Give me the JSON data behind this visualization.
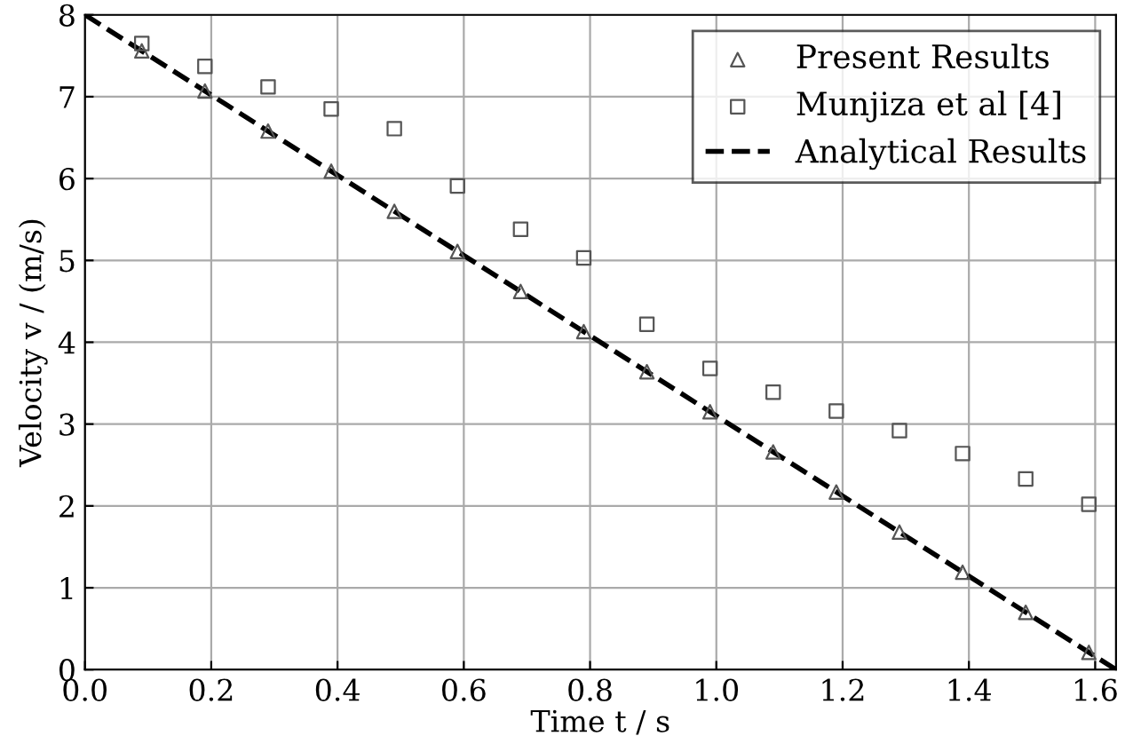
{
  "chart_data": {
    "type": "scatter",
    "xlabel": "Time t / s",
    "ylabel": "Velocity v / (m/s)",
    "x": [
      0.09,
      0.19,
      0.29,
      0.39,
      0.49,
      0.59,
      0.69,
      0.79,
      0.89,
      0.99,
      1.09,
      1.19,
      1.29,
      1.39,
      1.49,
      1.59
    ],
    "series": [
      {
        "name": "Present Results",
        "color": "#555555",
        "marker": "triangle",
        "values": [
          7.56,
          7.07,
          6.58,
          6.09,
          5.6,
          5.11,
          4.62,
          4.13,
          3.64,
          3.15,
          2.66,
          2.17,
          1.68,
          1.19,
          0.7,
          0.21
        ]
      },
      {
        "name": "Munjiza et al [4]",
        "color": "#555555",
        "marker": "square",
        "values": [
          7.65,
          7.37,
          7.12,
          6.85,
          6.61,
          5.91,
          5.38,
          5.03,
          4.22,
          3.68,
          3.39,
          3.16,
          2.92,
          2.64,
          2.33,
          2.02
        ]
      },
      {
        "name": "Analytical Results",
        "type": "line",
        "color": "#000000",
        "line_style": "dashed",
        "marker": "none",
        "x": [
          0,
          1.633
        ],
        "values": [
          8,
          0
        ]
      }
    ],
    "xlim": [
      0,
      1.633
    ],
    "ylim": [
      0,
      8
    ],
    "xticks": [
      {
        "value": 0,
        "label": "0.0"
      },
      0.2,
      0.4,
      0.6,
      0.8,
      {
        "value": 1,
        "label": "1.0"
      },
      1.2,
      1.4,
      1.6
    ],
    "yticks": [
      0,
      1,
      2,
      3,
      4,
      5,
      6,
      7,
      8
    ],
    "grid": true,
    "legend": "top right"
  }
}
